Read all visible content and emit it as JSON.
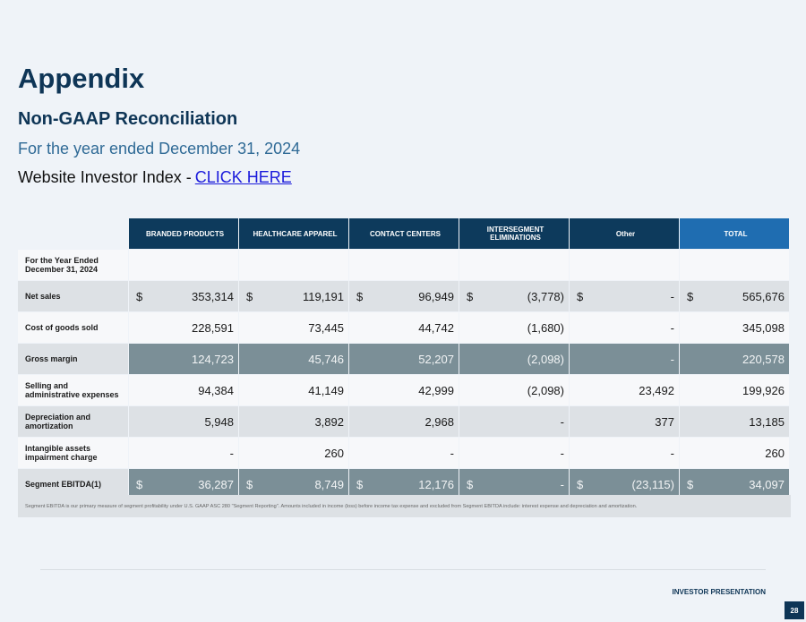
{
  "header": {
    "title": "Appendix",
    "subtitle": "Non-GAAP Reconciliation",
    "period": "For the year ended December 31, 2024",
    "index_text": "Website Investor Index -",
    "link": "CLICK HERE"
  },
  "table": {
    "columns": [
      "BRANDED PRODUCTS",
      "HEALTHCARE APPAREL",
      "CONTACT CENTERS",
      "INTERSEGMENT ELIMINATIONS",
      "Other",
      "TOTAL"
    ],
    "heading_label": "For the Year Ended December 31, 2024",
    "rows": [
      {
        "label": "Net sales",
        "cells": [
          {
            "currency": "$",
            "amount": "353,314"
          },
          {
            "currency": "$",
            "amount": "119,191"
          },
          {
            "currency": "$",
            "amount": "96,949"
          },
          {
            "currency": "$",
            "amount": "(3,778)"
          },
          {
            "currency": "$",
            "amount": "-"
          },
          {
            "currency": "$",
            "amount": "565,676"
          }
        ]
      },
      {
        "label": "Cost of goods sold",
        "cells": [
          {
            "amount": "228,591"
          },
          {
            "amount": "73,445"
          },
          {
            "amount": "44,742"
          },
          {
            "amount": "(1,680)"
          },
          {
            "amount": "-"
          },
          {
            "amount": "345,098"
          }
        ]
      },
      {
        "label": "Gross margin",
        "cells": [
          {
            "amount": "124,723"
          },
          {
            "amount": "45,746"
          },
          {
            "amount": "52,207"
          },
          {
            "amount": "(2,098)"
          },
          {
            "amount": "-"
          },
          {
            "amount": "220,578"
          }
        ]
      },
      {
        "label": "Selling and administrative expenses",
        "cells": [
          {
            "amount": "94,384"
          },
          {
            "amount": "41,149"
          },
          {
            "amount": "42,999"
          },
          {
            "amount": "(2,098)"
          },
          {
            "amount": "23,492"
          },
          {
            "amount": "199,926"
          }
        ]
      },
      {
        "label": "Depreciation and amortization",
        "cells": [
          {
            "amount": "5,948"
          },
          {
            "amount": "3,892"
          },
          {
            "amount": "2,968"
          },
          {
            "amount": "-"
          },
          {
            "amount": "377"
          },
          {
            "amount": "13,185"
          }
        ]
      },
      {
        "label": "Intangible assets impairment charge",
        "cells": [
          {
            "amount": "-"
          },
          {
            "amount": "260"
          },
          {
            "amount": "-"
          },
          {
            "amount": "-"
          },
          {
            "amount": "-"
          },
          {
            "amount": "260"
          }
        ]
      },
      {
        "label": "Segment EBITDA(1)",
        "cells": [
          {
            "currency": "$",
            "amount": "36,287"
          },
          {
            "currency": "$",
            "amount": "8,749"
          },
          {
            "currency": "$",
            "amount": "12,176"
          },
          {
            "currency": "$",
            "amount": "-"
          },
          {
            "currency": "$",
            "amount": "(23,115)"
          },
          {
            "currency": "$",
            "amount": "34,097"
          }
        ]
      }
    ],
    "footnote": "Segment EBITDA is our primary measure of segment profitability under U.S. GAAP ASC 280 \"Segment Reporting\". Amounts included in income (loss) before income tax expense and excluded from Segment EBITDA include: interest expense and depreciation and amortization."
  },
  "footer": {
    "label": "INVESTOR PRESENTATION",
    "page": "28"
  }
}
